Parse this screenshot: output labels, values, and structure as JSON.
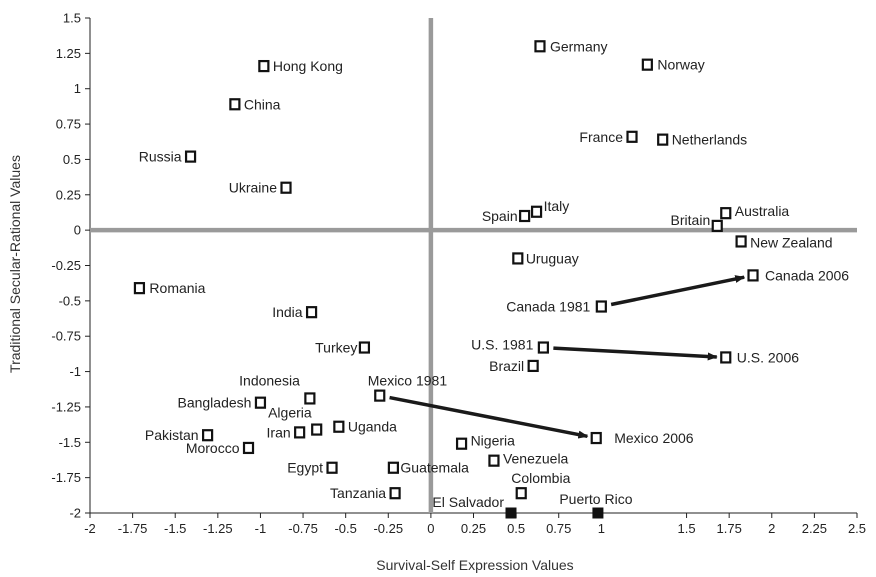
{
  "chart_data": {
    "type": "scatter",
    "xlabel": "Survival-Self Expression Values",
    "ylabel": "Traditional Secular-Rational Values",
    "xlim": [
      -2,
      2.5
    ],
    "ylim": [
      -2,
      1.5
    ],
    "x_ticks": [
      "-2",
      "-1.75",
      "-1.5",
      "-1.25",
      "-1",
      "-0.75",
      "-0.5",
      "-0.25",
      "0",
      "0.25",
      "0.5",
      "0.75",
      "1",
      "1.5",
      "1.75",
      "2",
      "2.25",
      "2.5"
    ],
    "y_ticks": [
      "1.5",
      "1.25",
      "1",
      "0.75",
      "0.5",
      "0.25",
      "0",
      "-0.25",
      "-0.5",
      "-0.75",
      "-1",
      "-1.25",
      "-1.5",
      "-1.75",
      "-2"
    ],
    "grid": false,
    "points": [
      {
        "label": "Germany",
        "x": 0.64,
        "y": 1.3
      },
      {
        "label": "Hong Kong",
        "x": -0.98,
        "y": 1.16
      },
      {
        "label": "Norway",
        "x": 1.27,
        "y": 1.17
      },
      {
        "label": "China",
        "x": -1.15,
        "y": 0.89
      },
      {
        "label": "France",
        "x": 1.18,
        "y": 0.66
      },
      {
        "label": "Netherlands",
        "x": 1.36,
        "y": 0.64
      },
      {
        "label": "Russia",
        "x": -1.41,
        "y": 0.52
      },
      {
        "label": "Ukraine",
        "x": -0.85,
        "y": 0.3
      },
      {
        "label": "Spain",
        "x": 0.55,
        "y": 0.1
      },
      {
        "label": "Italy",
        "x": 0.62,
        "y": 0.13
      },
      {
        "label": "Australia",
        "x": 1.73,
        "y": 0.12
      },
      {
        "label": "Britain",
        "x": 1.68,
        "y": 0.03
      },
      {
        "label": "New Zealand",
        "x": 1.82,
        "y": -0.08
      },
      {
        "label": "Uruguay",
        "x": 0.51,
        "y": -0.2
      },
      {
        "label": "Romania",
        "x": -1.71,
        "y": -0.41
      },
      {
        "label": "Canada 1981",
        "x": 1.0,
        "y": -0.54
      },
      {
        "label": "Canada 2006",
        "x": 1.89,
        "y": -0.32
      },
      {
        "label": "India",
        "x": -0.7,
        "y": -0.58
      },
      {
        "label": "Turkey",
        "x": -0.39,
        "y": -0.83
      },
      {
        "label": "U.S. 1981",
        "x": 0.66,
        "y": -0.83
      },
      {
        "label": "U.S. 2006",
        "x": 1.73,
        "y": -0.9
      },
      {
        "label": "Brazil",
        "x": 0.6,
        "y": -0.96
      },
      {
        "label": "Mexico 1981",
        "x": -0.3,
        "y": -1.17
      },
      {
        "label": "Indonesia",
        "x": -0.71,
        "y": -1.19
      },
      {
        "label": "Bangladesh",
        "x": -1.0,
        "y": -1.22
      },
      {
        "label": "Algeria",
        "x": -0.67,
        "y": -1.41
      },
      {
        "label": "Iran",
        "x": -0.77,
        "y": -1.43
      },
      {
        "label": "Uganda",
        "x": -0.54,
        "y": -1.39
      },
      {
        "label": "Pakistan",
        "x": -1.31,
        "y": -1.45
      },
      {
        "label": "Morocco",
        "x": -1.07,
        "y": -1.54
      },
      {
        "label": "Mexico 2006",
        "x": 0.97,
        "y": -1.47
      },
      {
        "label": "Nigeria",
        "x": 0.18,
        "y": -1.51
      },
      {
        "label": "Venezuela",
        "x": 0.37,
        "y": -1.63
      },
      {
        "label": "Egypt",
        "x": -0.58,
        "y": -1.68
      },
      {
        "label": "Guatemala",
        "x": -0.22,
        "y": -1.68
      },
      {
        "label": "Colombia",
        "x": 0.53,
        "y": -1.86
      },
      {
        "label": "Tanzania",
        "x": -0.21,
        "y": -1.86
      }
    ],
    "filled_points": [
      {
        "label": "El Salvador",
        "x": 0.47,
        "y": -2.0
      },
      {
        "label": "Puerto Rico",
        "x": 0.98,
        "y": -2.0
      }
    ],
    "arrows": [
      {
        "from": "Canada 1981",
        "to": "Canada 2006"
      },
      {
        "from": "U.S. 1981",
        "to": "U.S. 2006"
      },
      {
        "from": "Mexico 1981",
        "to": "Mexico 2006"
      }
    ]
  }
}
